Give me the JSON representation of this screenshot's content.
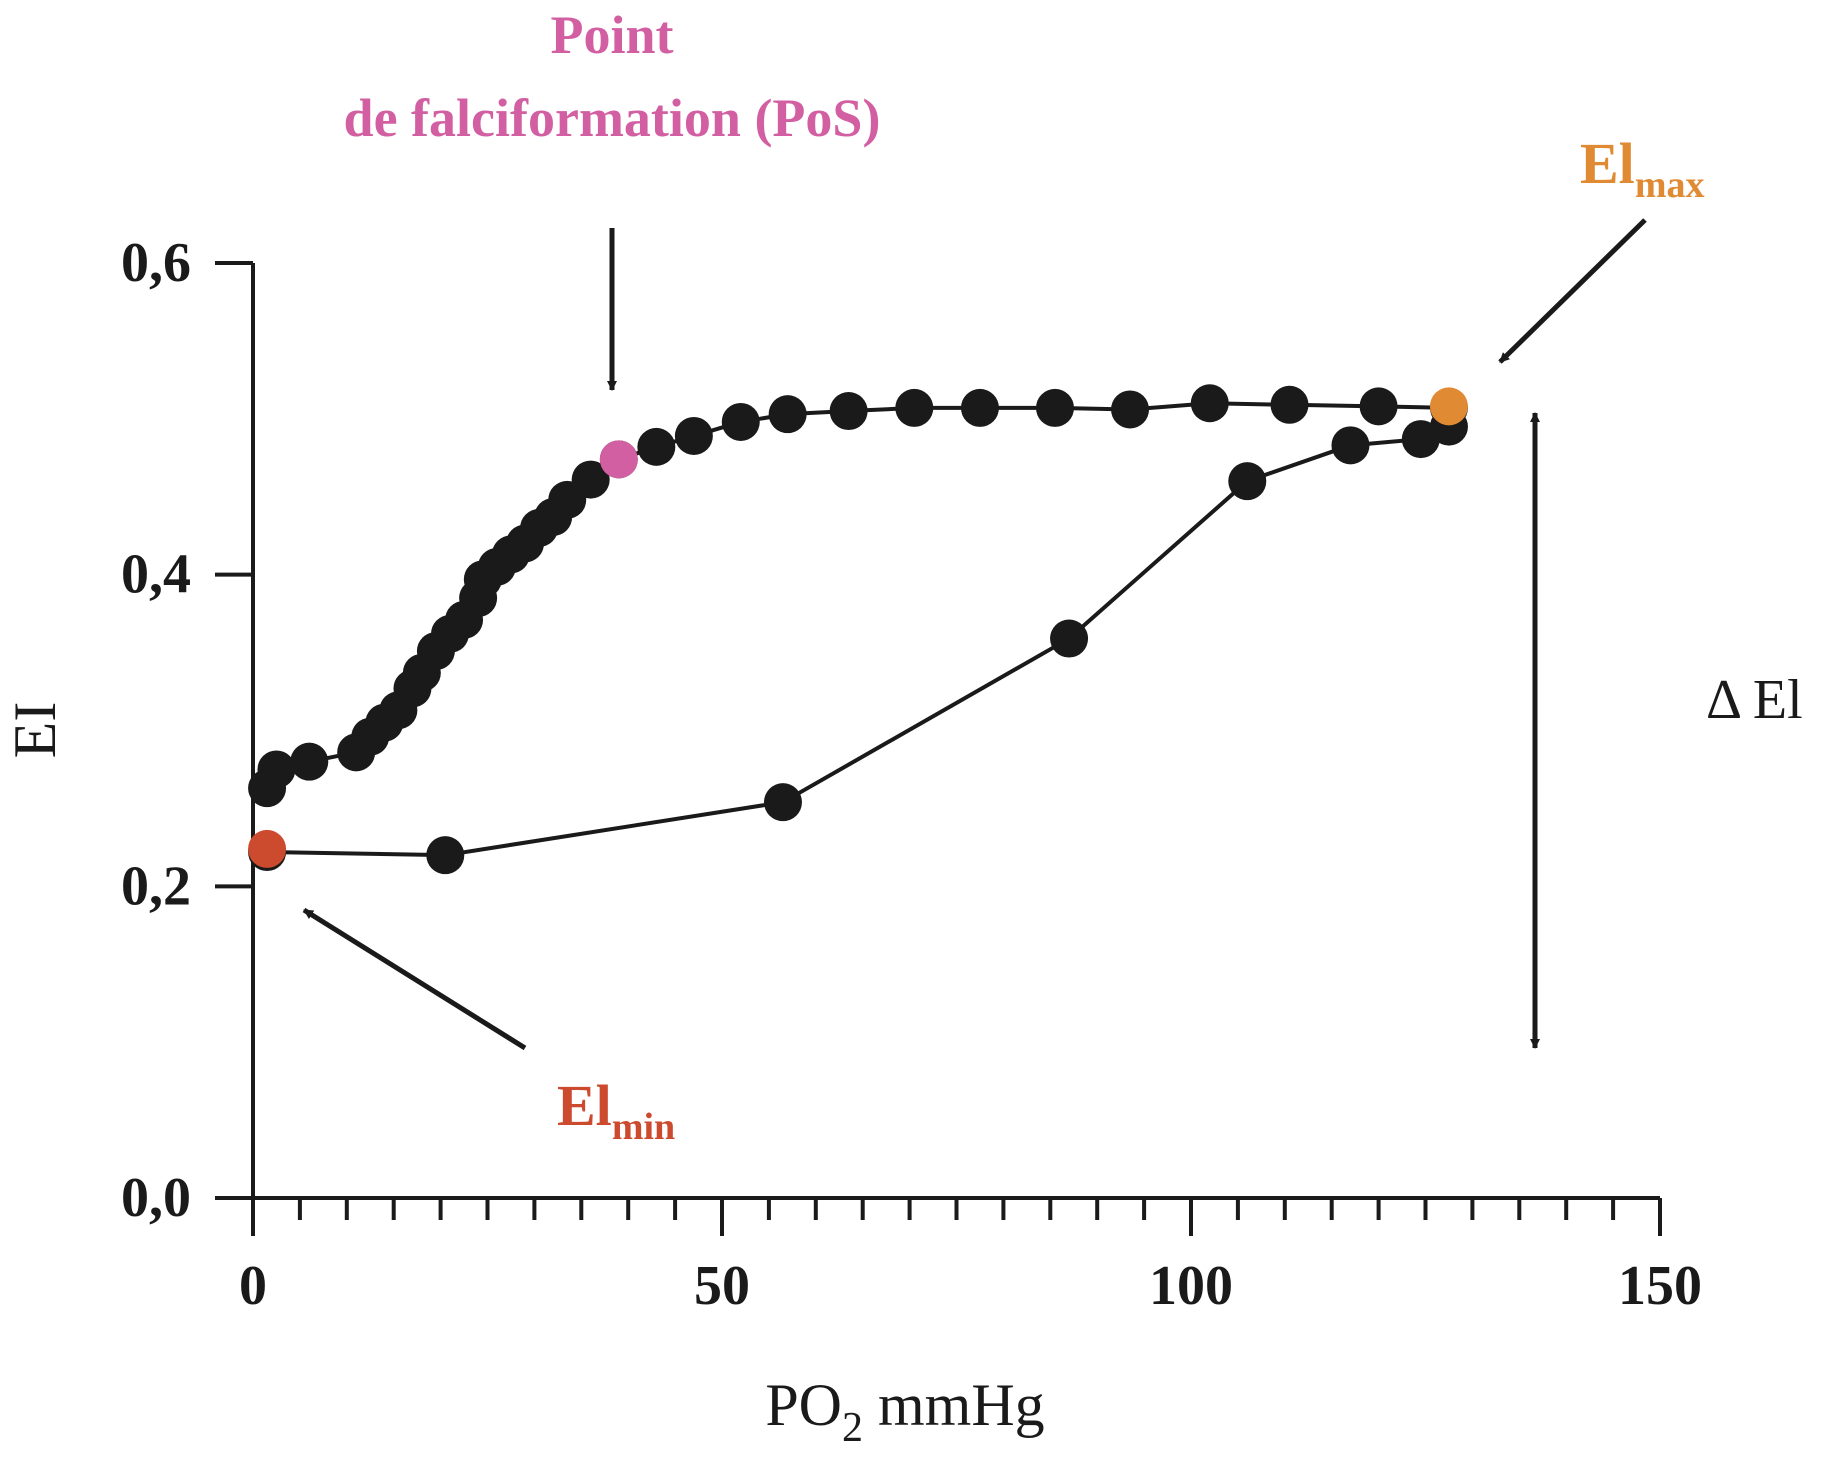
{
  "chart_data": {
    "type": "line",
    "xlabel_main": "PO",
    "xlabel_sub": "2",
    "xlabel_unit": " mmHg",
    "ylabel": "EI",
    "xlim": [
      0,
      150
    ],
    "ylim": [
      0,
      0.6
    ],
    "x_ticks": [
      {
        "value": 0,
        "label": "0"
      },
      {
        "value": 50,
        "label": "50"
      },
      {
        "value": 100,
        "label": "100"
      },
      {
        "value": 150,
        "label": "150"
      }
    ],
    "x_minor_step": 5,
    "y_ticks": [
      {
        "value": 0.0,
        "label": "0,0"
      },
      {
        "value": 0.2,
        "label": "0,2"
      },
      {
        "value": 0.4,
        "label": "0,4"
      },
      {
        "value": 0.6,
        "label": "0,6"
      }
    ],
    "series": [
      {
        "points": [
          [
            1.5,
            0.263
          ],
          [
            2.5,
            0.275
          ],
          [
            6,
            0.28
          ],
          [
            11,
            0.286
          ],
          [
            12.5,
            0.296
          ],
          [
            14,
            0.305
          ],
          [
            15.5,
            0.313
          ],
          [
            17,
            0.327
          ],
          [
            18,
            0.337
          ],
          [
            19.5,
            0.351
          ],
          [
            21,
            0.362
          ],
          [
            22.5,
            0.371
          ],
          [
            24,
            0.385
          ],
          [
            24.5,
            0.397
          ],
          [
            26,
            0.405
          ],
          [
            27.5,
            0.413
          ],
          [
            29,
            0.42
          ],
          [
            30.5,
            0.43
          ],
          [
            32,
            0.437
          ],
          [
            33.5,
            0.448
          ],
          [
            36,
            0.461
          ],
          [
            39,
            0.474
          ],
          [
            43,
            0.482
          ],
          [
            47,
            0.489
          ],
          [
            52,
            0.498
          ],
          [
            57,
            0.503
          ],
          [
            63.5,
            0.505
          ],
          [
            70.5,
            0.507
          ],
          [
            77.5,
            0.507
          ],
          [
            85.5,
            0.507
          ],
          [
            93.5,
            0.506
          ],
          [
            102,
            0.51
          ],
          [
            110.5,
            0.509
          ],
          [
            120,
            0.508
          ],
          [
            127.5,
            0.507
          ]
        ]
      },
      {
        "points": [
          [
            127.5,
            0.495
          ],
          [
            124.5,
            0.487
          ],
          [
            117,
            0.483
          ],
          [
            106,
            0.46
          ],
          [
            87,
            0.359
          ],
          [
            56.5,
            0.254
          ],
          [
            20.5,
            0.22
          ],
          [
            1.5,
            0.222
          ]
        ]
      }
    ],
    "highlights": [
      {
        "name": "pos",
        "x": 39,
        "y": 0.474,
        "color": "#d35fa3"
      },
      {
        "name": "ei-max",
        "x": 127.5,
        "y": 0.508,
        "color": "#e08a33"
      },
      {
        "name": "ei-min",
        "x": 1.5,
        "y": 0.224,
        "color": "#cc4b2e"
      }
    ],
    "annotations": {
      "pos_line1": "Point",
      "pos_line2": "de falciformation (PoS)",
      "pos_color": "#d35fa3",
      "eimax_main": "El",
      "eimax_sub": "max",
      "eimax_color": "#e08a33",
      "eimin_main": "El",
      "eimin_sub": "min",
      "eimin_color": "#cc4b2e",
      "delta": "Δ El"
    },
    "colors": {
      "axis": "#1a1a1a",
      "points": "#1a1a1a",
      "line": "#1a1a1a"
    }
  }
}
